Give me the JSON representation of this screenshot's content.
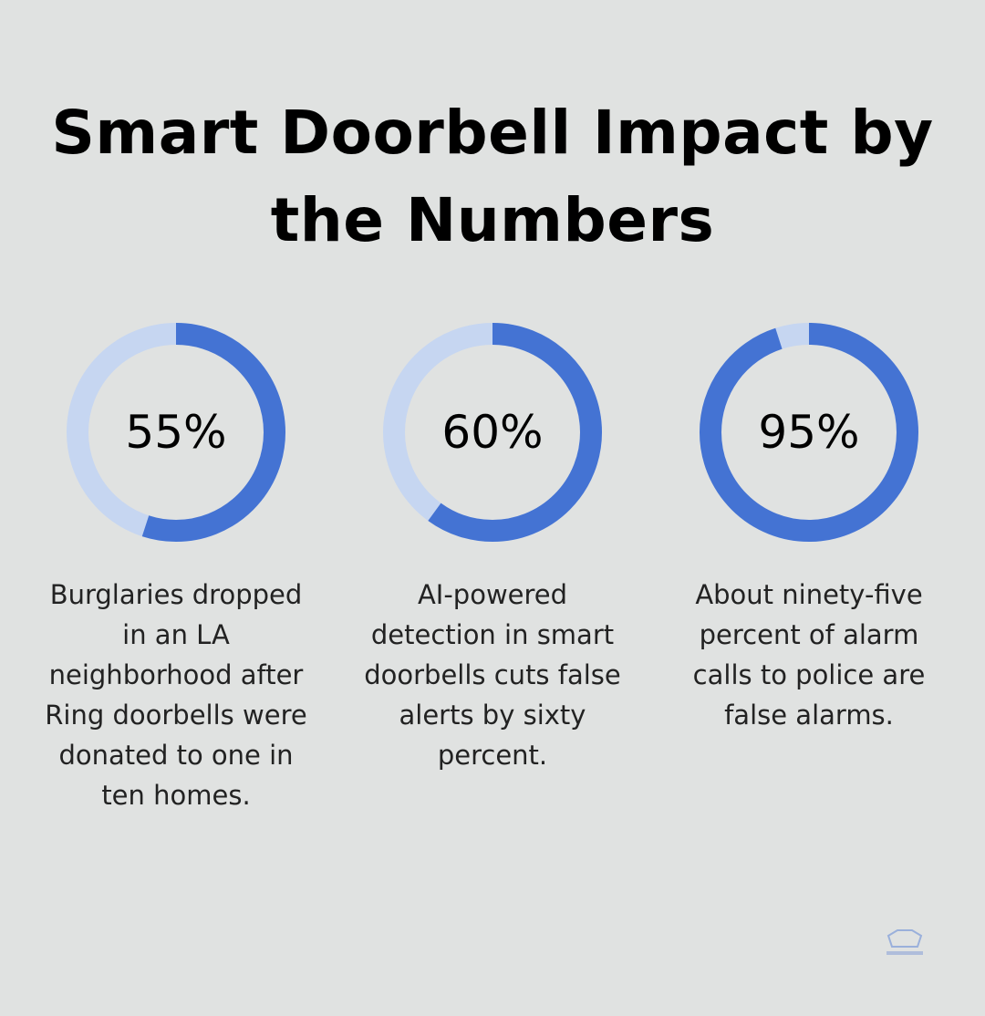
{
  "title": "Smart Doorbell Impact by the Numbers",
  "colors": {
    "background": "#e0e2e1",
    "filled": "#4473d3",
    "track": "#c6d6f1"
  },
  "chart_data": [
    {
      "type": "pie",
      "variant": "donut",
      "value": 55,
      "max": 100,
      "label": "55%",
      "description": "Burglaries dropped in an LA neighborhood after Ring doorbells were donated to one in ten homes."
    },
    {
      "type": "pie",
      "variant": "donut",
      "value": 60,
      "max": 100,
      "label": "60%",
      "description": "AI-powered detection in smart doorbells cuts false alerts by sixty percent."
    },
    {
      "type": "pie",
      "variant": "donut",
      "value": 95,
      "max": 100,
      "label": "95%",
      "description": "About ninety-five percent of alarm calls to police are false alarms."
    }
  ]
}
